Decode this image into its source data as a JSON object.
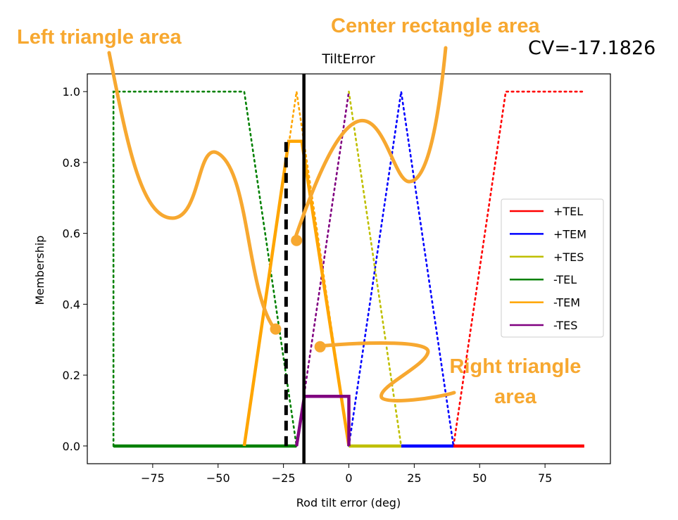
{
  "chart_data": {
    "type": "line",
    "title": "TiltError",
    "xlabel": "Rod tilt error (deg)",
    "ylabel": "Membership",
    "xlim": [
      -100,
      100
    ],
    "ylim": [
      -0.05,
      1.05
    ],
    "x_ticks": [
      -75,
      -50,
      -25,
      0,
      25,
      50,
      75
    ],
    "x_tick_labels": [
      "−75",
      "−50",
      "−25",
      "0",
      "25",
      "50",
      "75"
    ],
    "y_ticks": [
      0.0,
      0.2,
      0.4,
      0.6,
      0.8,
      1.0
    ],
    "y_tick_labels": [
      "0.0",
      "0.2",
      "0.4",
      "0.6",
      "0.8",
      "1.0"
    ],
    "grid": false,
    "legend_position": "center-right",
    "series": [
      {
        "name": "+TEL",
        "color": "#ff0000",
        "x": [
          40,
          60,
          90
        ],
        "y": [
          0,
          1,
          1
        ]
      },
      {
        "name": "+TEM",
        "color": "#0000ff",
        "x": [
          0,
          20,
          40
        ],
        "y": [
          0,
          1,
          0
        ]
      },
      {
        "name": "+TES",
        "color": "#bfbf00",
        "x": [
          0,
          20
        ],
        "y": [
          1,
          0
        ]
      },
      {
        "name": "-TEL",
        "color": "#008000",
        "x": [
          -90,
          -90,
          -40,
          -20
        ],
        "y": [
          0,
          1,
          1,
          0
        ]
      },
      {
        "name": "-TEM",
        "color": "#ffa500",
        "x": [
          -40,
          -20,
          0
        ],
        "y": [
          0,
          1,
          0
        ]
      },
      {
        "name": "-TES",
        "color": "#800080",
        "x": [
          -20,
          0
        ],
        "y": [
          0,
          1
        ]
      }
    ],
    "active_regions": [
      {
        "series": "+TEL",
        "x": [
          40,
          90
        ],
        "y": [
          0,
          0
        ]
      },
      {
        "series": "+TEM",
        "x": [
          20,
          40
        ],
        "y": [
          0,
          0
        ]
      },
      {
        "series": "+TES",
        "x": [
          0,
          20
        ],
        "y": [
          0,
          0
        ]
      },
      {
        "series": "-TEL",
        "x": [
          -90,
          -20
        ],
        "y": [
          0,
          0
        ]
      },
      {
        "series": "-TEM",
        "x": [
          -40,
          -23,
          -18,
          0
        ],
        "y": [
          0,
          0.86,
          0.86,
          0
        ]
      },
      {
        "series": "-TES",
        "x": [
          -20,
          -17,
          0,
          0
        ],
        "y": [
          0,
          0.14,
          0.14,
          0
        ]
      }
    ],
    "crisp_value_x": -17.1826,
    "dashed_marker_x": -24,
    "dashed_marker_y": [
      0,
      0.86
    ],
    "cv_text": "CV=-17.1826",
    "annotations": [
      {
        "text": "Left triangle area",
        "target_x": -28,
        "target_y": 0.33
      },
      {
        "text": "Center rectangle area",
        "target_x": -20,
        "target_y": 0.58
      },
      {
        "text": "Right triangle",
        "text_line2": "area",
        "target_x": -11,
        "target_y": 0.28
      }
    ],
    "annotation_color": "#F7A830"
  }
}
